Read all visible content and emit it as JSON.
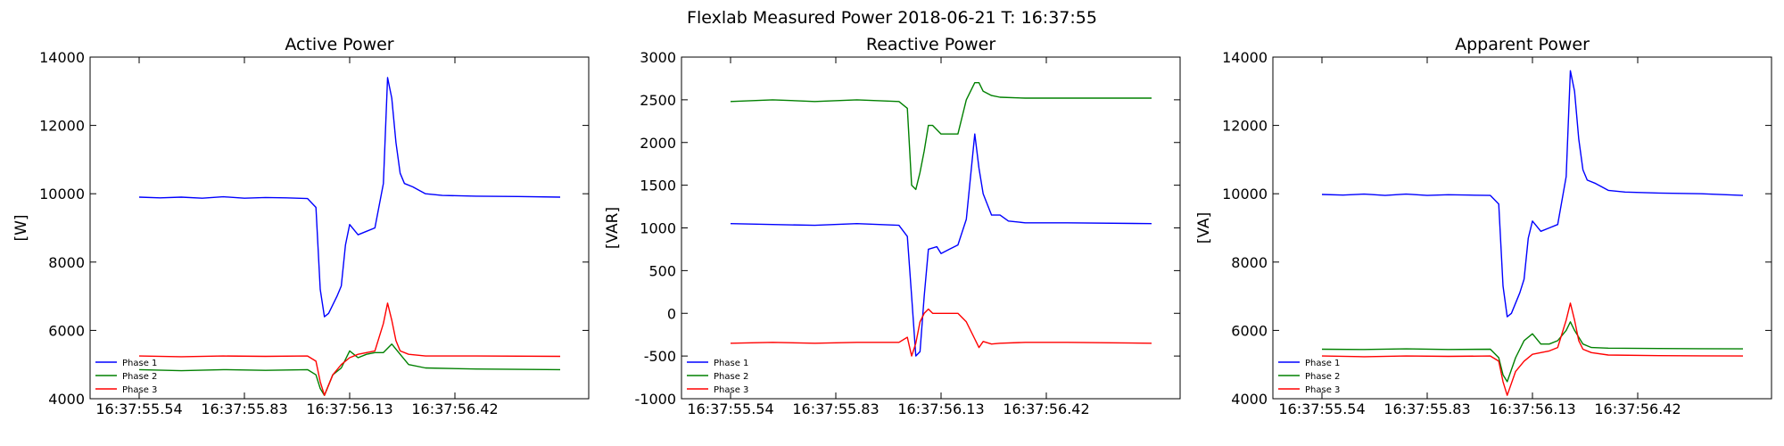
{
  "figure": {
    "suptitle": "Flexlab Measured Power 2018-06-21 T: 16:37:55"
  },
  "chart_data": [
    {
      "type": "line",
      "title": "Active Power",
      "xlabel": "",
      "ylabel": "[W]",
      "ylim": [
        4000,
        14000
      ],
      "yticks": [
        4000,
        6000,
        8000,
        10000,
        12000,
        14000
      ],
      "xlim": [
        0,
        1
      ],
      "xtick_values": [
        0.0,
        0.25,
        0.5,
        0.75
      ],
      "xtick_labels": [
        "16:37:55.54",
        "16:37:55.83",
        "16:37:56.13",
        "16:37:56.42"
      ],
      "grid": false,
      "legend": "bottom-left",
      "series": [
        {
          "name": "Phase 1",
          "color": "#0000ff",
          "x": [
            0.0,
            0.05,
            0.1,
            0.15,
            0.2,
            0.25,
            0.3,
            0.35,
            0.4,
            0.42,
            0.43,
            0.44,
            0.45,
            0.47,
            0.48,
            0.49,
            0.5,
            0.52,
            0.54,
            0.56,
            0.58,
            0.59,
            0.6,
            0.61,
            0.62,
            0.63,
            0.65,
            0.68,
            0.72,
            0.8,
            0.9,
            1.0
          ],
          "y": [
            9900,
            9880,
            9900,
            9870,
            9910,
            9870,
            9890,
            9880,
            9860,
            9600,
            7200,
            6400,
            6500,
            7000,
            7300,
            8500,
            9100,
            8800,
            8900,
            9000,
            10300,
            13400,
            12800,
            11500,
            10600,
            10300,
            10200,
            10000,
            9950,
            9930,
            9920,
            9900
          ]
        },
        {
          "name": "Phase 2",
          "color": "#008000",
          "x": [
            0.0,
            0.1,
            0.2,
            0.3,
            0.4,
            0.42,
            0.43,
            0.44,
            0.46,
            0.48,
            0.5,
            0.52,
            0.54,
            0.56,
            0.58,
            0.6,
            0.62,
            0.64,
            0.68,
            0.8,
            1.0
          ],
          "y": [
            4850,
            4820,
            4850,
            4830,
            4850,
            4700,
            4300,
            4100,
            4700,
            4900,
            5400,
            5200,
            5300,
            5350,
            5350,
            5600,
            5300,
            5000,
            4900,
            4870,
            4850
          ]
        },
        {
          "name": "Phase 3",
          "color": "#ff0000",
          "x": [
            0.0,
            0.1,
            0.2,
            0.3,
            0.4,
            0.42,
            0.43,
            0.44,
            0.46,
            0.48,
            0.5,
            0.52,
            0.54,
            0.56,
            0.58,
            0.59,
            0.6,
            0.61,
            0.62,
            0.64,
            0.68,
            0.8,
            1.0
          ],
          "y": [
            5250,
            5230,
            5250,
            5240,
            5250,
            5100,
            4500,
            4100,
            4700,
            5000,
            5200,
            5300,
            5350,
            5400,
            6200,
            6800,
            6300,
            5700,
            5400,
            5300,
            5250,
            5250,
            5240
          ]
        }
      ]
    },
    {
      "type": "line",
      "title": "Reactive Power",
      "xlabel": "",
      "ylabel": "[VAR]",
      "ylim": [
        -1000,
        3000
      ],
      "yticks": [
        -1000,
        -500,
        0,
        500,
        1000,
        1500,
        2000,
        2500,
        3000
      ],
      "xlim": [
        0,
        1
      ],
      "xtick_values": [
        0.0,
        0.25,
        0.5,
        0.75
      ],
      "xtick_labels": [
        "16:37:55.54",
        "16:37:55.83",
        "16:37:56.13",
        "16:37:56.42"
      ],
      "grid": false,
      "legend": "bottom-left",
      "series": [
        {
          "name": "Phase 1",
          "color": "#0000ff",
          "x": [
            0.0,
            0.1,
            0.2,
            0.3,
            0.4,
            0.42,
            0.43,
            0.44,
            0.45,
            0.46,
            0.47,
            0.49,
            0.5,
            0.52,
            0.54,
            0.56,
            0.58,
            0.59,
            0.6,
            0.62,
            0.64,
            0.66,
            0.7,
            0.8,
            1.0
          ],
          "y": [
            1050,
            1040,
            1030,
            1050,
            1030,
            900,
            200,
            -500,
            -450,
            200,
            750,
            780,
            700,
            750,
            800,
            1100,
            2100,
            1700,
            1400,
            1150,
            1150,
            1080,
            1060,
            1060,
            1050
          ]
        },
        {
          "name": "Phase 2",
          "color": "#008000",
          "x": [
            0.0,
            0.1,
            0.2,
            0.3,
            0.4,
            0.42,
            0.43,
            0.44,
            0.45,
            0.46,
            0.47,
            0.48,
            0.5,
            0.52,
            0.54,
            0.56,
            0.58,
            0.59,
            0.6,
            0.62,
            0.64,
            0.7,
            0.8,
            1.0
          ],
          "y": [
            2480,
            2500,
            2480,
            2500,
            2480,
            2400,
            1500,
            1450,
            1650,
            1900,
            2200,
            2200,
            2100,
            2100,
            2100,
            2500,
            2700,
            2700,
            2600,
            2550,
            2530,
            2520,
            2520,
            2520
          ]
        },
        {
          "name": "Phase 3",
          "color": "#ff0000",
          "x": [
            0.0,
            0.1,
            0.2,
            0.3,
            0.4,
            0.42,
            0.43,
            0.44,
            0.45,
            0.46,
            0.47,
            0.48,
            0.5,
            0.52,
            0.54,
            0.56,
            0.58,
            0.59,
            0.6,
            0.62,
            0.64,
            0.7,
            0.8,
            1.0
          ],
          "y": [
            -350,
            -340,
            -350,
            -340,
            -340,
            -280,
            -500,
            -350,
            -100,
            0,
            50,
            0,
            0,
            0,
            0,
            -100,
            -300,
            -400,
            -330,
            -360,
            -350,
            -340,
            -340,
            -350
          ]
        }
      ]
    },
    {
      "type": "line",
      "title": "Apparent Power",
      "xlabel": "",
      "ylabel": "[VA]",
      "ylim": [
        4000,
        14000
      ],
      "yticks": [
        4000,
        6000,
        8000,
        10000,
        12000,
        14000
      ],
      "xlim": [
        0,
        1
      ],
      "xtick_values": [
        0.0,
        0.25,
        0.5,
        0.75
      ],
      "xtick_labels": [
        "16:37:55.54",
        "16:37:55.83",
        "16:37:56.13",
        "16:37:56.42"
      ],
      "grid": false,
      "legend": "bottom-left",
      "series": [
        {
          "name": "Phase 1",
          "color": "#0000ff",
          "x": [
            0.0,
            0.05,
            0.1,
            0.15,
            0.2,
            0.25,
            0.3,
            0.35,
            0.4,
            0.42,
            0.43,
            0.44,
            0.45,
            0.47,
            0.48,
            0.49,
            0.5,
            0.52,
            0.54,
            0.56,
            0.58,
            0.59,
            0.6,
            0.61,
            0.62,
            0.63,
            0.65,
            0.68,
            0.72,
            0.8,
            0.9,
            1.0
          ],
          "y": [
            9980,
            9960,
            9990,
            9950,
            9990,
            9950,
            9970,
            9960,
            9950,
            9700,
            7300,
            6400,
            6500,
            7100,
            7500,
            8700,
            9200,
            8900,
            9000,
            9100,
            10500,
            13600,
            13000,
            11600,
            10700,
            10400,
            10300,
            10100,
            10050,
            10020,
            10000,
            9950
          ]
        },
        {
          "name": "Phase 2",
          "color": "#008000",
          "x": [
            0.0,
            0.1,
            0.2,
            0.3,
            0.4,
            0.42,
            0.43,
            0.44,
            0.46,
            0.48,
            0.5,
            0.52,
            0.54,
            0.56,
            0.58,
            0.59,
            0.6,
            0.62,
            0.64,
            0.68,
            0.8,
            1.0
          ],
          "y": [
            5450,
            5440,
            5460,
            5440,
            5450,
            5200,
            4700,
            4500,
            5200,
            5700,
            5900,
            5600,
            5600,
            5700,
            6000,
            6250,
            6000,
            5600,
            5500,
            5480,
            5470,
            5460
          ]
        },
        {
          "name": "Phase 3",
          "color": "#ff0000",
          "x": [
            0.0,
            0.1,
            0.2,
            0.3,
            0.4,
            0.42,
            0.43,
            0.44,
            0.46,
            0.48,
            0.5,
            0.52,
            0.54,
            0.56,
            0.58,
            0.59,
            0.6,
            0.61,
            0.62,
            0.64,
            0.68,
            0.8,
            1.0
          ],
          "y": [
            5250,
            5230,
            5250,
            5240,
            5250,
            5100,
            4500,
            4100,
            4800,
            5100,
            5300,
            5350,
            5400,
            5500,
            6300,
            6800,
            6300,
            5700,
            5450,
            5350,
            5280,
            5260,
            5250
          ]
        }
      ]
    }
  ]
}
